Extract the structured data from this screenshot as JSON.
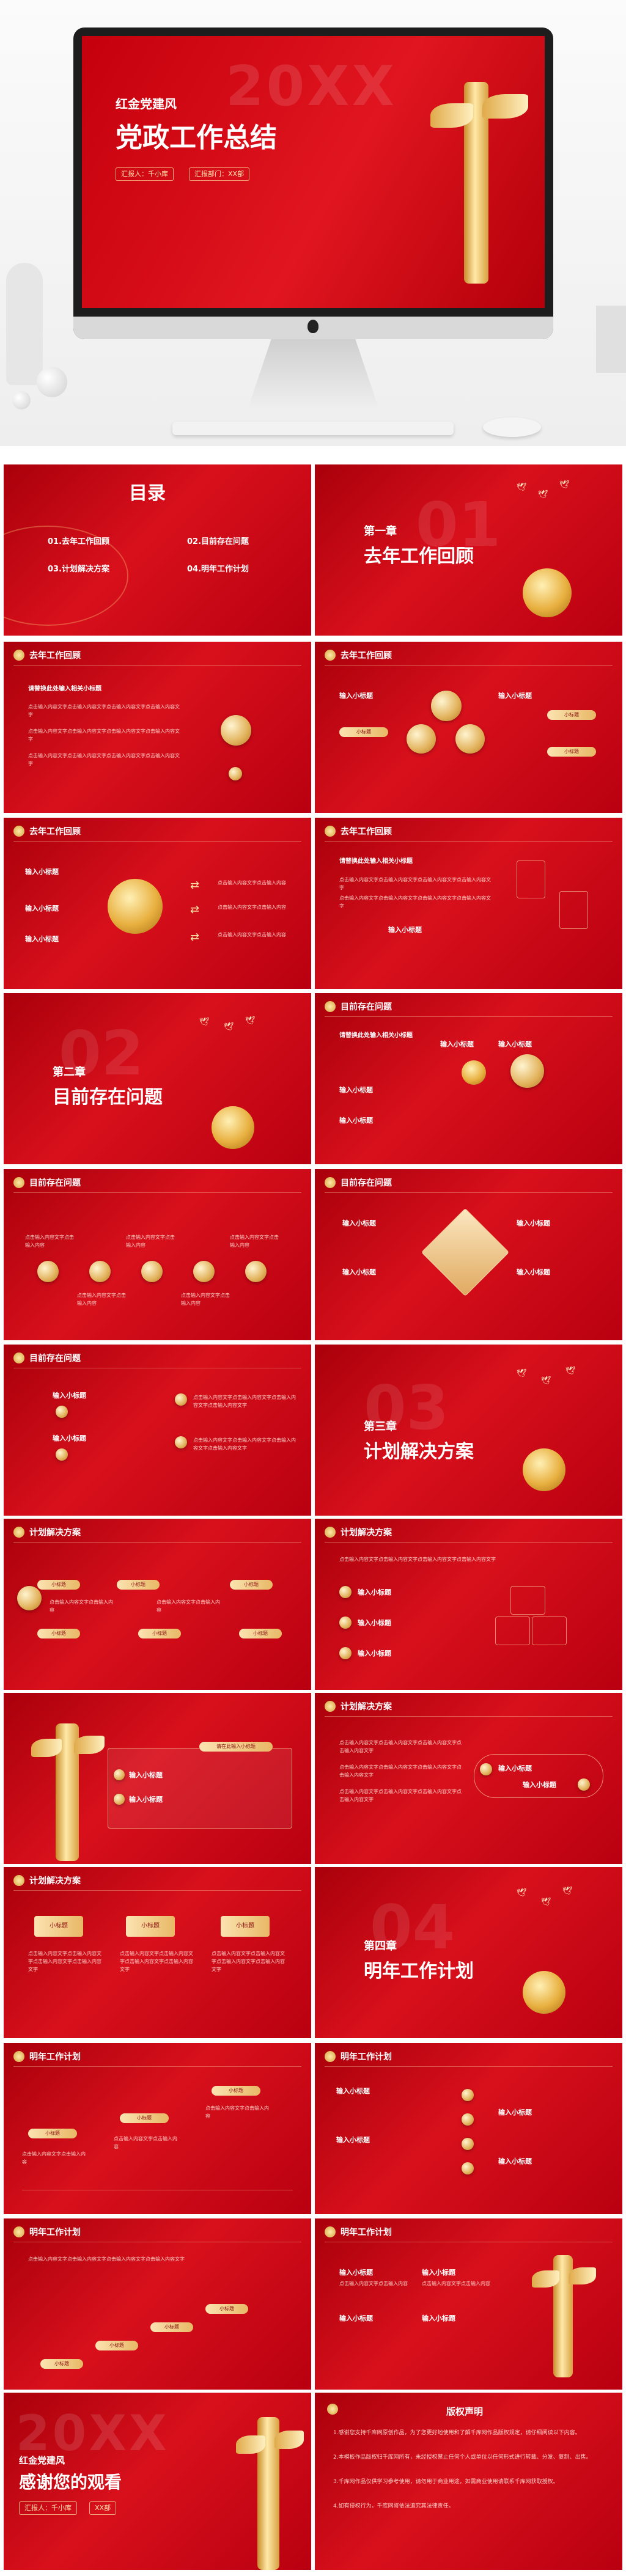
{
  "hero": {
    "year_watermark": "20XX",
    "subtitle": "红金党建风",
    "title": "党政工作总结",
    "reporter": "汇报人：千小库",
    "department": "汇报部门：XX部"
  },
  "toc": {
    "title": "目录",
    "items": [
      "01.去年工作回顾",
      "02.目前存在问题",
      "03.计划解决方案",
      "04.明年工作计划"
    ]
  },
  "chapters": [
    {
      "num": "01",
      "label": "第一章",
      "title": "去年工作回顾"
    },
    {
      "num": "02",
      "label": "第二章",
      "title": "目前存在问题"
    },
    {
      "num": "03",
      "label": "第三章",
      "title": "计划解决方案"
    },
    {
      "num": "04",
      "label": "第四章",
      "title": "明年工作计划"
    }
  ],
  "sections": {
    "s1": "去年工作回顾",
    "s2": "目前存在问题",
    "s3": "计划解决方案",
    "s4": "明年工作计划"
  },
  "texts": {
    "input_subtitle": "输入小标题",
    "input_intro": "请替换此处输入相关小标题",
    "body": "点击输入内容文字点击输入内容文字点击输入内容文字点击输入内容文字",
    "body_short": "点击输入内容文字点击输入内容",
    "btn": "小标题",
    "btn_input": "请在此输入小标题"
  },
  "ending": {
    "year_watermark": "20XX",
    "subtitle": "红金党建风",
    "title": "感谢您的观看",
    "reporter": "汇报人：千小库",
    "department": "XX部"
  },
  "copyright": {
    "title": "版权声明",
    "lines": [
      "1.感谢您支持千库网原创作品，为了您更好地使用和了解千库网作品版权规定，请仔细阅读以下内容。",
      "2.本模板作品版权归千库网所有，未经授权禁止任何个人或单位以任何形式进行转载、分发、复制、出售。",
      "3.千库网作品仅供学习参考使用，请勿用于商业用途，如需商业使用请联系千库网获取授权。",
      "4.如有侵权行为，千库网将依法追究其法律责任。"
    ]
  }
}
